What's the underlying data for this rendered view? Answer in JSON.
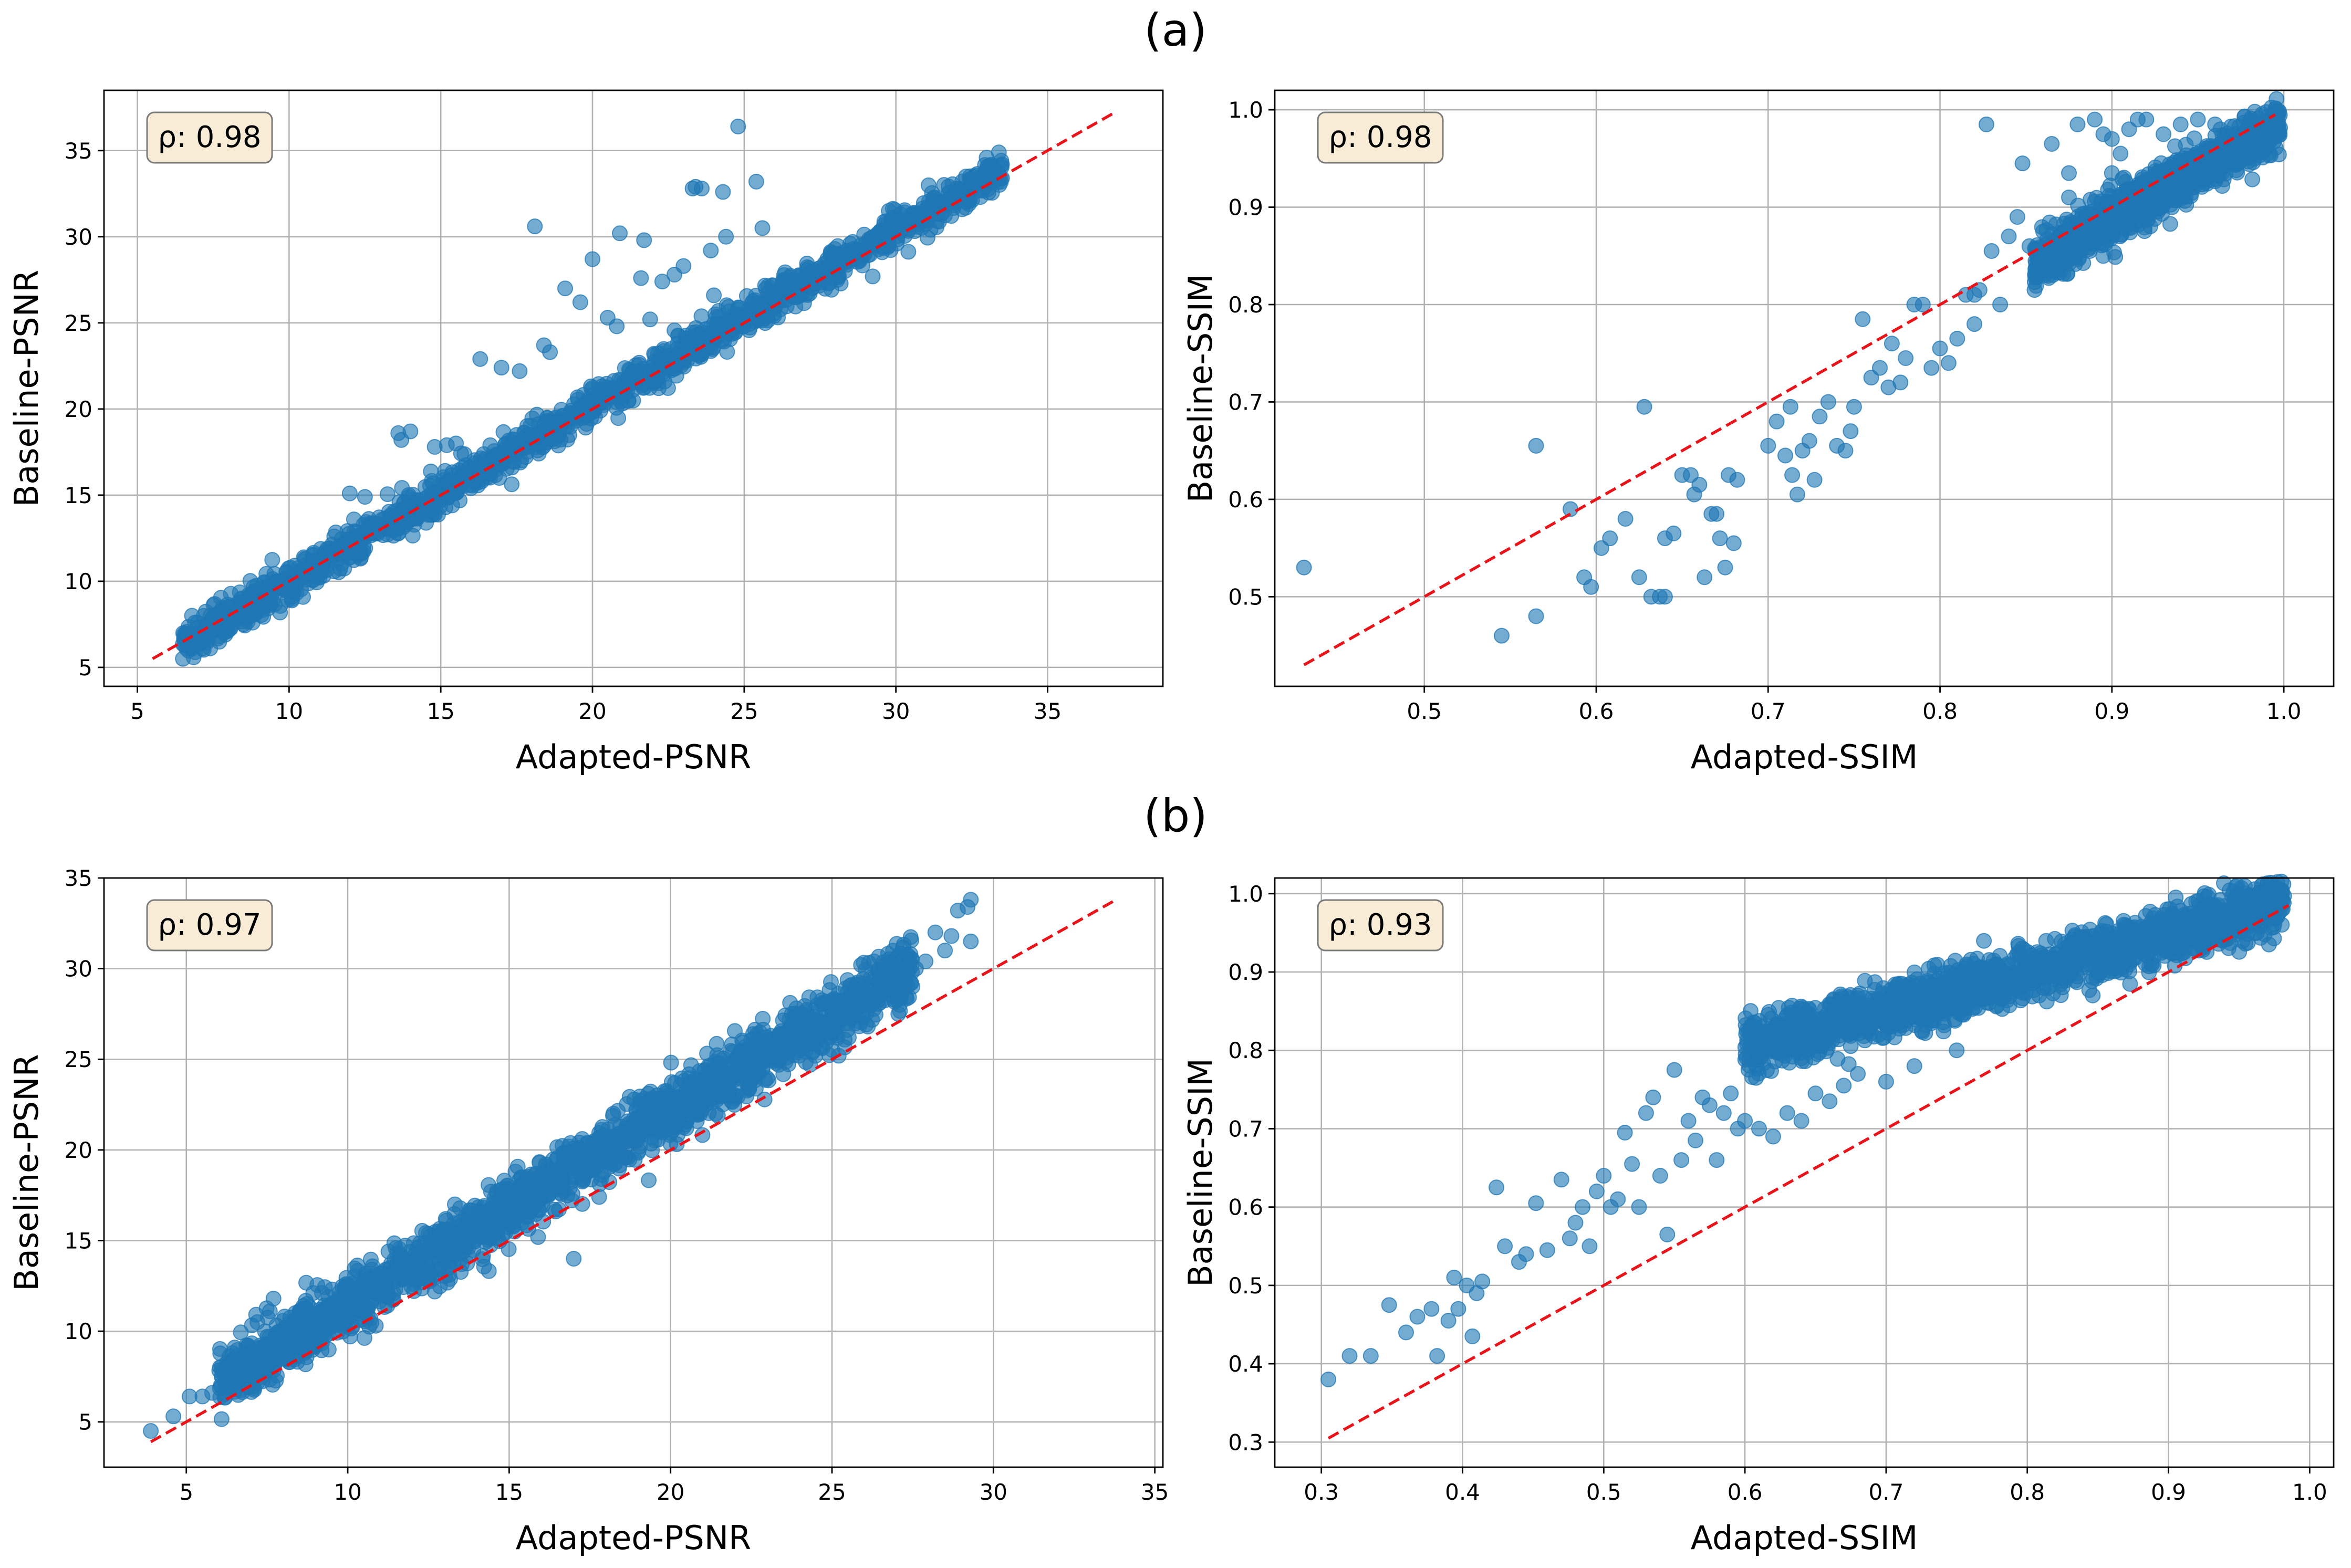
{
  "figure": {
    "section_labels": [
      "(a)",
      "(b)"
    ]
  },
  "colors": {
    "points": "#1f77b4",
    "reference_line": "#e8141a",
    "grid": "#b0b0b0",
    "annotation_bg": "#f8ecd6",
    "annotation_border": "#7a7a7a"
  },
  "chart_data": [
    {
      "type": "scatter",
      "panel": "(a)",
      "annotation": "ρ: 0.98",
      "xlabel": "Adapted-PSNR",
      "ylabel": "Baseline-PSNR",
      "xlim": [
        3.9,
        38.8
      ],
      "ylim": [
        3.9,
        38.5
      ],
      "xticks": [
        5,
        10,
        15,
        20,
        25,
        30,
        35
      ],
      "yticks": [
        5,
        10,
        15,
        20,
        25,
        30,
        35
      ],
      "grid": true,
      "reference_line": [
        [
          5.5,
          5.5
        ],
        [
          37.2,
          37.2
        ]
      ],
      "trend": {
        "x_range": [
          6.5,
          33.5
        ],
        "slope": 1.02,
        "intercept": -0.2,
        "spread": 0.55,
        "count": 1500
      },
      "outliers": [
        [
          6.5,
          5.5
        ],
        [
          6.8,
          8.0
        ],
        [
          6.9,
          7.6
        ],
        [
          7.2,
          6.6
        ],
        [
          7.4,
          6.1
        ],
        [
          7.9,
          6.9
        ],
        [
          8.3,
          8.7
        ],
        [
          8.5,
          7.5
        ],
        [
          8.8,
          8.3
        ],
        [
          9.2,
          9.9
        ],
        [
          9.5,
          9.6
        ],
        [
          10.1,
          9.1
        ],
        [
          12.0,
          15.1
        ],
        [
          12.5,
          14.9
        ],
        [
          13.6,
          18.6
        ],
        [
          13.7,
          18.2
        ],
        [
          14.0,
          18.7
        ],
        [
          14.8,
          17.8
        ],
        [
          15.2,
          17.9
        ],
        [
          15.5,
          18.0
        ],
        [
          17.0,
          22.4
        ],
        [
          17.6,
          22.2
        ],
        [
          18.1,
          30.6
        ],
        [
          18.4,
          23.7
        ],
        [
          18.6,
          23.3
        ],
        [
          19.1,
          27.0
        ],
        [
          19.6,
          26.2
        ],
        [
          20.0,
          28.7
        ],
        [
          20.5,
          25.3
        ],
        [
          20.9,
          30.2
        ],
        [
          21.7,
          29.8
        ],
        [
          21.6,
          27.6
        ],
        [
          21.9,
          25.2
        ],
        [
          22.3,
          27.4
        ],
        [
          22.7,
          27.8
        ],
        [
          23.0,
          28.3
        ],
        [
          23.3,
          32.8
        ],
        [
          23.4,
          32.9
        ],
        [
          23.6,
          32.8
        ],
        [
          23.9,
          29.2
        ],
        [
          24.0,
          26.6
        ],
        [
          24.3,
          32.6
        ],
        [
          24.8,
          36.4
        ],
        [
          25.4,
          33.2
        ],
        [
          25.6,
          30.5
        ],
        [
          24.4,
          30.0
        ],
        [
          20.8,
          24.8
        ],
        [
          16.3,
          22.9
        ]
      ]
    },
    {
      "type": "scatter",
      "panel": "(a)",
      "annotation": "ρ: 0.98",
      "xlabel": "Adapted-SSIM",
      "ylabel": "Baseline-SSIM",
      "xlim": [
        0.413,
        1.029
      ],
      "ylim": [
        0.408,
        1.02
      ],
      "xticks": [
        0.5,
        0.6,
        0.7,
        0.8,
        0.9,
        1.0
      ],
      "yticks": [
        0.5,
        0.6,
        0.7,
        0.8,
        0.9,
        1.0
      ],
      "grid": true,
      "reference_line": [
        [
          0.43,
          0.43
        ],
        [
          0.995,
          0.995
        ]
      ],
      "trend": {
        "x_range": [
          0.855,
          0.998
        ],
        "slope": 1.0,
        "intercept": -0.012,
        "spread": 0.013,
        "count": 1100
      },
      "outliers": [
        [
          0.43,
          0.53
        ],
        [
          0.545,
          0.46
        ],
        [
          0.565,
          0.48
        ],
        [
          0.565,
          0.655
        ],
        [
          0.585,
          0.59
        ],
        [
          0.593,
          0.52
        ],
        [
          0.597,
          0.51
        ],
        [
          0.603,
          0.55
        ],
        [
          0.608,
          0.56
        ],
        [
          0.617,
          0.58
        ],
        [
          0.625,
          0.52
        ],
        [
          0.628,
          0.695
        ],
        [
          0.632,
          0.5
        ],
        [
          0.637,
          0.5
        ],
        [
          0.64,
          0.5
        ],
        [
          0.64,
          0.56
        ],
        [
          0.645,
          0.565
        ],
        [
          0.65,
          0.625
        ],
        [
          0.655,
          0.625
        ],
        [
          0.657,
          0.605
        ],
        [
          0.66,
          0.615
        ],
        [
          0.663,
          0.52
        ],
        [
          0.667,
          0.585
        ],
        [
          0.67,
          0.585
        ],
        [
          0.672,
          0.56
        ],
        [
          0.675,
          0.53
        ],
        [
          0.677,
          0.625
        ],
        [
          0.68,
          0.555
        ],
        [
          0.682,
          0.62
        ],
        [
          0.7,
          0.655
        ],
        [
          0.705,
          0.68
        ],
        [
          0.71,
          0.645
        ],
        [
          0.713,
          0.695
        ],
        [
          0.714,
          0.625
        ],
        [
          0.717,
          0.605
        ],
        [
          0.72,
          0.65
        ],
        [
          0.724,
          0.66
        ],
        [
          0.727,
          0.62
        ],
        [
          0.73,
          0.685
        ],
        [
          0.735,
          0.7
        ],
        [
          0.74,
          0.655
        ],
        [
          0.745,
          0.65
        ],
        [
          0.748,
          0.67
        ],
        [
          0.75,
          0.695
        ],
        [
          0.755,
          0.785
        ],
        [
          0.76,
          0.725
        ],
        [
          0.765,
          0.735
        ],
        [
          0.77,
          0.715
        ],
        [
          0.772,
          0.76
        ],
        [
          0.777,
          0.72
        ],
        [
          0.78,
          0.745
        ],
        [
          0.785,
          0.8
        ],
        [
          0.79,
          0.8
        ],
        [
          0.795,
          0.735
        ],
        [
          0.8,
          0.755
        ],
        [
          0.805,
          0.74
        ],
        [
          0.81,
          0.765
        ],
        [
          0.815,
          0.81
        ],
        [
          0.82,
          0.78
        ],
        [
          0.823,
          0.815
        ],
        [
          0.827,
          0.985
        ],
        [
          0.83,
          0.855
        ],
        [
          0.835,
          0.8
        ],
        [
          0.84,
          0.87
        ],
        [
          0.845,
          0.89
        ],
        [
          0.848,
          0.945
        ],
        [
          0.852,
          0.86
        ],
        [
          0.855,
          0.815
        ],
        [
          0.86,
          0.875
        ],
        [
          0.865,
          0.965
        ],
        [
          0.87,
          0.84
        ],
        [
          0.875,
          0.935
        ],
        [
          0.88,
          0.985
        ],
        [
          0.885,
          0.87
        ],
        [
          0.89,
          0.99
        ],
        [
          0.895,
          0.975
        ],
        [
          0.9,
          0.97
        ],
        [
          0.91,
          0.98
        ],
        [
          0.915,
          0.99
        ],
        [
          0.92,
          0.99
        ],
        [
          0.93,
          0.975
        ],
        [
          0.94,
          0.985
        ],
        [
          0.95,
          0.99
        ],
        [
          0.96,
          0.985
        ],
        [
          0.9,
          0.935
        ],
        [
          0.905,
          0.955
        ],
        [
          0.875,
          0.91
        ],
        [
          0.82,
          0.81
        ]
      ]
    },
    {
      "type": "scatter",
      "panel": "(b)",
      "annotation": "ρ: 0.97",
      "xlabel": "Adapted-PSNR",
      "ylabel": "Baseline-PSNR",
      "xlim": [
        2.45,
        35.25
      ],
      "ylim": [
        2.5,
        35.0
      ],
      "xticks": [
        5,
        10,
        15,
        20,
        25,
        30,
        35
      ],
      "yticks": [
        5,
        10,
        15,
        20,
        25,
        30,
        35
      ],
      "grid": true,
      "reference_line": [
        [
          3.9,
          3.9
        ],
        [
          33.7,
          33.7
        ]
      ],
      "trend": {
        "x_range": [
          6.0,
          27.5
        ],
        "slope": 1.06,
        "intercept": 0.9,
        "spread": 0.85,
        "count": 2000
      },
      "outliers": [
        [
          3.9,
          4.5
        ],
        [
          4.6,
          5.3
        ],
        [
          5.1,
          6.4
        ],
        [
          5.5,
          6.4
        ],
        [
          5.8,
          6.6
        ],
        [
          6.1,
          7.5
        ],
        [
          6.5,
          9.1
        ],
        [
          6.9,
          8.7
        ],
        [
          7.2,
          10.5
        ],
        [
          7.7,
          11.8
        ],
        [
          8.2,
          8.3
        ],
        [
          17.0,
          14.0
        ],
        [
          22.6,
          25.0
        ],
        [
          24.0,
          25.5
        ],
        [
          24.6,
          27.1
        ],
        [
          25.0,
          28.0
        ],
        [
          25.2,
          28.6
        ],
        [
          25.6,
          29.1
        ],
        [
          25.9,
          30.2
        ],
        [
          26.3,
          30.4
        ],
        [
          26.6,
          29.5
        ],
        [
          27.1,
          28.0
        ],
        [
          27.6,
          30.0
        ],
        [
          27.9,
          30.4
        ],
        [
          28.5,
          31.0
        ],
        [
          28.9,
          33.2
        ],
        [
          29.3,
          33.8
        ],
        [
          29.2,
          33.4
        ],
        [
          28.2,
          32.0
        ],
        [
          29.3,
          31.5
        ],
        [
          28.7,
          31.8
        ]
      ]
    },
    {
      "type": "scatter",
      "panel": "(b)",
      "annotation": "ρ: 0.93",
      "xlabel": "Adapted-SSIM",
      "ylabel": "Baseline-SSIM",
      "xlim": [
        0.267,
        1.017
      ],
      "ylim": [
        0.268,
        1.02
      ],
      "xticks": [
        0.3,
        0.4,
        0.5,
        0.6,
        0.7,
        0.8,
        0.9,
        1.0
      ],
      "yticks": [
        0.3,
        0.4,
        0.5,
        0.6,
        0.7,
        0.8,
        0.9,
        1.0
      ],
      "grid": true,
      "reference_line": [
        [
          0.305,
          0.305
        ],
        [
          0.985,
          0.985
        ]
      ],
      "trend": {
        "x_range": [
          0.6,
          0.982
        ],
        "slope": 0.48,
        "intercept": 0.515,
        "spread": 0.017,
        "count": 1800
      },
      "outliers": [
        [
          0.305,
          0.38
        ],
        [
          0.32,
          0.41
        ],
        [
          0.335,
          0.41
        ],
        [
          0.348,
          0.475
        ],
        [
          0.36,
          0.44
        ],
        [
          0.368,
          0.46
        ],
        [
          0.378,
          0.47
        ],
        [
          0.382,
          0.41
        ],
        [
          0.39,
          0.455
        ],
        [
          0.394,
          0.51
        ],
        [
          0.397,
          0.47
        ],
        [
          0.403,
          0.5
        ],
        [
          0.407,
          0.435
        ],
        [
          0.41,
          0.49
        ],
        [
          0.414,
          0.505
        ],
        [
          0.424,
          0.625
        ],
        [
          0.43,
          0.55
        ],
        [
          0.44,
          0.53
        ],
        [
          0.445,
          0.54
        ],
        [
          0.452,
          0.605
        ],
        [
          0.46,
          0.545
        ],
        [
          0.47,
          0.635
        ],
        [
          0.476,
          0.56
        ],
        [
          0.48,
          0.58
        ],
        [
          0.485,
          0.6
        ],
        [
          0.49,
          0.55
        ],
        [
          0.495,
          0.62
        ],
        [
          0.5,
          0.64
        ],
        [
          0.505,
          0.6
        ],
        [
          0.51,
          0.61
        ],
        [
          0.515,
          0.695
        ],
        [
          0.52,
          0.655
        ],
        [
          0.525,
          0.6
        ],
        [
          0.53,
          0.72
        ],
        [
          0.535,
          0.74
        ],
        [
          0.54,
          0.64
        ],
        [
          0.545,
          0.565
        ],
        [
          0.55,
          0.775
        ],
        [
          0.555,
          0.66
        ],
        [
          0.56,
          0.71
        ],
        [
          0.565,
          0.685
        ],
        [
          0.57,
          0.74
        ],
        [
          0.575,
          0.73
        ],
        [
          0.58,
          0.66
        ],
        [
          0.585,
          0.72
        ],
        [
          0.59,
          0.745
        ],
        [
          0.595,
          0.7
        ],
        [
          0.6,
          0.71
        ],
        [
          0.61,
          0.7
        ],
        [
          0.62,
          0.69
        ],
        [
          0.63,
          0.72
        ],
        [
          0.64,
          0.71
        ],
        [
          0.65,
          0.745
        ],
        [
          0.66,
          0.735
        ],
        [
          0.67,
          0.755
        ],
        [
          0.68,
          0.77
        ],
        [
          0.7,
          0.76
        ],
        [
          0.72,
          0.78
        ],
        [
          0.75,
          0.8
        ],
        [
          0.62,
          0.8
        ],
        [
          0.64,
          0.79
        ]
      ]
    }
  ]
}
